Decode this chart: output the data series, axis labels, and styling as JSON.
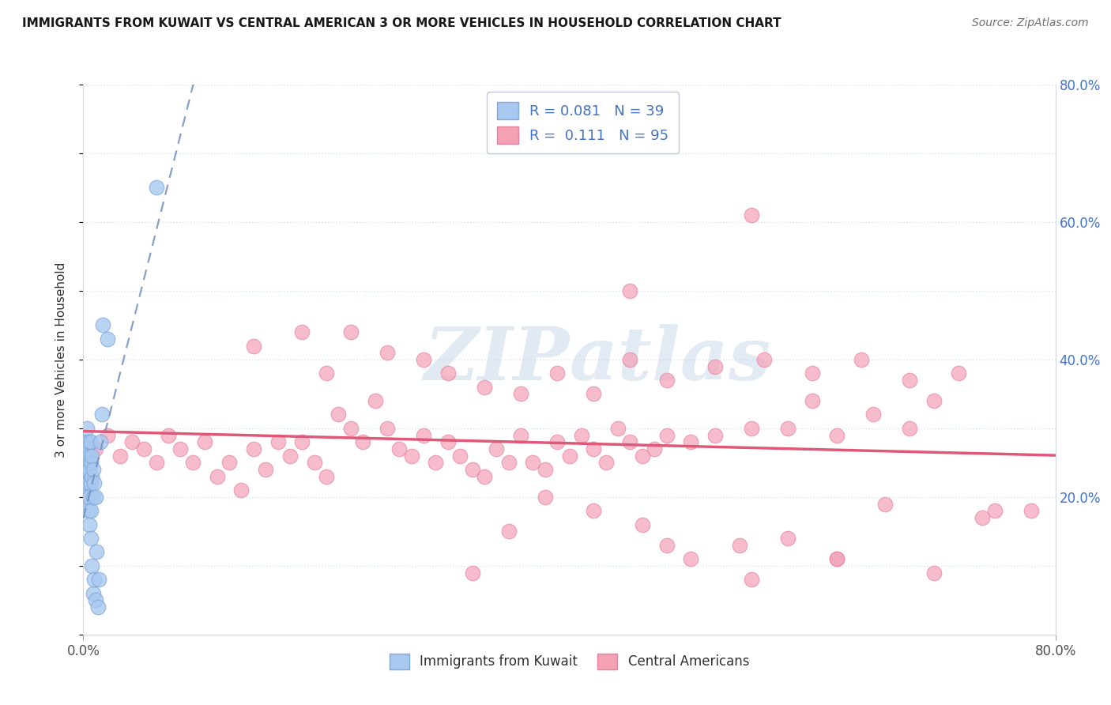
{
  "title": "IMMIGRANTS FROM KUWAIT VS CENTRAL AMERICAN 3 OR MORE VEHICLES IN HOUSEHOLD CORRELATION CHART",
  "source": "Source: ZipAtlas.com",
  "ylabel": "3 or more Vehicles in Household",
  "legend_label_1": "Immigrants from Kuwait",
  "legend_label_2": "Central Americans",
  "r1": "0.081",
  "n1": "39",
  "r2": "0.111",
  "n2": "95",
  "xlim": [
    0.0,
    0.8
  ],
  "ylim": [
    0.0,
    0.8
  ],
  "color_kuwait": "#a8c8f0",
  "color_central": "#f4a0b5",
  "edge_kuwait": "#80a8d8",
  "edge_central": "#e880a0",
  "trend_color_kuwait": "#7090c0",
  "trend_color_central": "#e05878",
  "background_color": "#ffffff",
  "grid_color": "#d8e4f0",
  "watermark": "ZIPatlas",
  "kuwait_x": [
    0.001,
    0.002,
    0.002,
    0.002,
    0.003,
    0.003,
    0.003,
    0.003,
    0.004,
    0.004,
    0.004,
    0.004,
    0.005,
    0.005,
    0.005,
    0.005,
    0.006,
    0.006,
    0.006,
    0.006,
    0.006,
    0.007,
    0.007,
    0.007,
    0.008,
    0.008,
    0.008,
    0.009,
    0.009,
    0.01,
    0.01,
    0.011,
    0.012,
    0.013,
    0.014,
    0.015,
    0.016,
    0.06,
    0.02
  ],
  "kuwait_y": [
    0.26,
    0.28,
    0.25,
    0.22,
    0.3,
    0.27,
    0.24,
    0.2,
    0.28,
    0.25,
    0.22,
    0.18,
    0.26,
    0.24,
    0.2,
    0.16,
    0.28,
    0.25,
    0.22,
    0.18,
    0.14,
    0.26,
    0.23,
    0.1,
    0.24,
    0.2,
    0.06,
    0.22,
    0.08,
    0.2,
    0.05,
    0.12,
    0.04,
    0.08,
    0.28,
    0.32,
    0.45,
    0.65,
    0.43
  ],
  "central_x": [
    0.01,
    0.02,
    0.03,
    0.04,
    0.05,
    0.06,
    0.07,
    0.08,
    0.09,
    0.1,
    0.11,
    0.12,
    0.13,
    0.14,
    0.15,
    0.16,
    0.17,
    0.18,
    0.19,
    0.2,
    0.21,
    0.22,
    0.23,
    0.24,
    0.25,
    0.26,
    0.27,
    0.28,
    0.29,
    0.3,
    0.31,
    0.32,
    0.33,
    0.34,
    0.35,
    0.36,
    0.37,
    0.38,
    0.39,
    0.4,
    0.41,
    0.42,
    0.43,
    0.44,
    0.45,
    0.46,
    0.47,
    0.48,
    0.5,
    0.52,
    0.55,
    0.58,
    0.6,
    0.62,
    0.65,
    0.68,
    0.7,
    0.72,
    0.75,
    0.78,
    0.14,
    0.18,
    0.2,
    0.22,
    0.25,
    0.28,
    0.3,
    0.33,
    0.36,
    0.39,
    0.42,
    0.45,
    0.48,
    0.52,
    0.56,
    0.6,
    0.64,
    0.68,
    0.38,
    0.42,
    0.46,
    0.5,
    0.54,
    0.58,
    0.62,
    0.66,
    0.7,
    0.74,
    0.55,
    0.45,
    0.35,
    0.32,
    0.48,
    0.55,
    0.62
  ],
  "central_y": [
    0.27,
    0.29,
    0.26,
    0.28,
    0.27,
    0.25,
    0.29,
    0.27,
    0.25,
    0.28,
    0.23,
    0.25,
    0.21,
    0.27,
    0.24,
    0.28,
    0.26,
    0.28,
    0.25,
    0.23,
    0.32,
    0.3,
    0.28,
    0.34,
    0.3,
    0.27,
    0.26,
    0.29,
    0.25,
    0.28,
    0.26,
    0.24,
    0.23,
    0.27,
    0.25,
    0.29,
    0.25,
    0.24,
    0.28,
    0.26,
    0.29,
    0.27,
    0.25,
    0.3,
    0.28,
    0.26,
    0.27,
    0.29,
    0.28,
    0.29,
    0.3,
    0.3,
    0.34,
    0.29,
    0.32,
    0.3,
    0.34,
    0.38,
    0.18,
    0.18,
    0.42,
    0.44,
    0.38,
    0.44,
    0.41,
    0.4,
    0.38,
    0.36,
    0.35,
    0.38,
    0.35,
    0.4,
    0.37,
    0.39,
    0.4,
    0.38,
    0.4,
    0.37,
    0.2,
    0.18,
    0.16,
    0.11,
    0.13,
    0.14,
    0.11,
    0.19,
    0.09,
    0.17,
    0.61,
    0.5,
    0.15,
    0.09,
    0.13,
    0.08,
    0.11
  ]
}
